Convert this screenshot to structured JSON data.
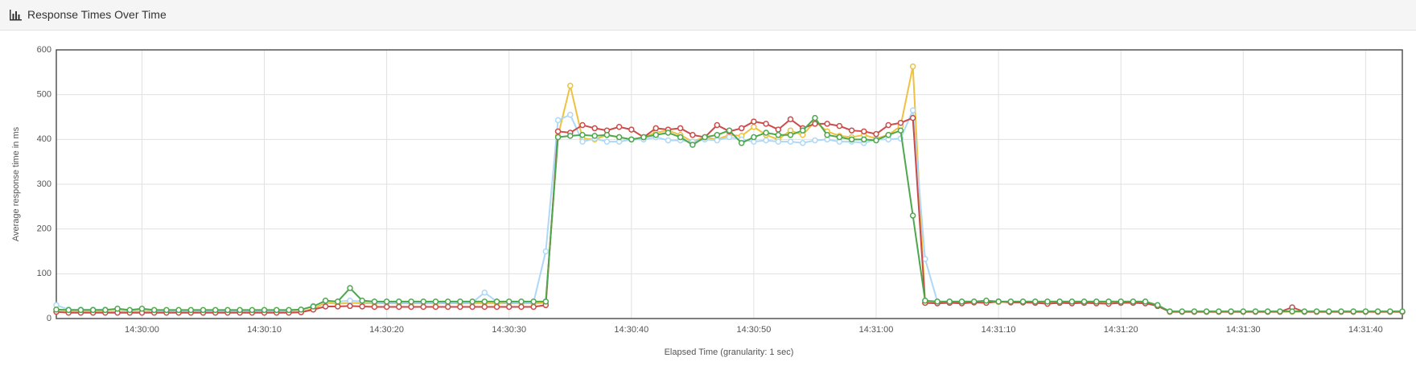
{
  "chart_data": {
    "type": "line",
    "title": "Response Times Over Time",
    "x_label": "Elapsed Time (granularity: 1 sec)",
    "y_label": "Average response time in ms",
    "x": [
      "14:29:53",
      "14:29:54",
      "14:29:55",
      "14:29:56",
      "14:29:57",
      "14:29:58",
      "14:29:59",
      "14:30:00",
      "14:30:01",
      "14:30:02",
      "14:30:03",
      "14:30:04",
      "14:30:05",
      "14:30:06",
      "14:30:07",
      "14:30:08",
      "14:30:09",
      "14:30:10",
      "14:30:11",
      "14:30:12",
      "14:30:13",
      "14:30:14",
      "14:30:15",
      "14:30:16",
      "14:30:17",
      "14:30:18",
      "14:30:19",
      "14:30:20",
      "14:30:21",
      "14:30:22",
      "14:30:23",
      "14:30:24",
      "14:30:25",
      "14:30:26",
      "14:30:27",
      "14:30:28",
      "14:30:29",
      "14:30:30",
      "14:30:31",
      "14:30:32",
      "14:30:33",
      "14:30:34",
      "14:30:35",
      "14:30:36",
      "14:30:37",
      "14:30:38",
      "14:30:39",
      "14:30:40",
      "14:30:41",
      "14:30:42",
      "14:30:43",
      "14:30:44",
      "14:30:45",
      "14:30:46",
      "14:30:47",
      "14:30:48",
      "14:30:49",
      "14:30:50",
      "14:30:51",
      "14:30:52",
      "14:30:53",
      "14:30:54",
      "14:30:55",
      "14:30:56",
      "14:30:57",
      "14:30:58",
      "14:30:59",
      "14:31:00",
      "14:31:01",
      "14:31:02",
      "14:31:03",
      "14:31:04",
      "14:31:05",
      "14:31:06",
      "14:31:07",
      "14:31:08",
      "14:31:09",
      "14:31:10",
      "14:31:11",
      "14:31:12",
      "14:31:13",
      "14:31:14",
      "14:31:15",
      "14:31:16",
      "14:31:17",
      "14:31:18",
      "14:31:19",
      "14:31:20",
      "14:31:21",
      "14:31:22",
      "14:31:23",
      "14:31:24",
      "14:31:25",
      "14:31:26",
      "14:31:27",
      "14:31:28",
      "14:31:29",
      "14:31:30",
      "14:31:31",
      "14:31:32",
      "14:31:33",
      "14:31:34",
      "14:31:35",
      "14:31:36",
      "14:31:37",
      "14:31:38",
      "14:31:39",
      "14:31:40",
      "14:31:41",
      "14:31:42",
      "14:31:43"
    ],
    "xlim": [
      "14:29:53",
      "14:31:43"
    ],
    "xticks": [
      "14:30:00",
      "14:30:10",
      "14:30:20",
      "14:30:30",
      "14:30:40",
      "14:30:50",
      "14:31:00",
      "14:31:10",
      "14:31:20",
      "14:31:30",
      "14:31:40"
    ],
    "ylim": [
      0,
      600
    ],
    "yticks": [
      0,
      100,
      200,
      300,
      400,
      500,
      600
    ],
    "grid": true,
    "series": [
      {
        "color": "#edc240",
        "values": [
          15,
          15,
          15,
          15,
          15,
          15,
          15,
          15,
          15,
          15,
          15,
          15,
          15,
          15,
          15,
          15,
          15,
          15,
          15,
          15,
          15,
          22,
          35,
          33,
          35,
          34,
          34,
          34,
          34,
          34,
          34,
          34,
          34,
          34,
          34,
          34,
          34,
          34,
          34,
          34,
          35,
          408,
          520,
          402,
          400,
          410,
          405,
          400,
          405,
          415,
          420,
          410,
          395,
          405,
          400,
          410,
          408,
          428,
          410,
          400,
          420,
          410,
          440,
          418,
          408,
          405,
          410,
          402,
          410,
          430,
          563,
          35,
          37,
          37,
          37,
          37,
          37,
          37,
          37,
          37,
          37,
          37,
          37,
          37,
          37,
          37,
          37,
          37,
          37,
          37,
          28,
          15,
          15,
          15,
          15,
          15,
          15,
          15,
          15,
          15,
          15,
          15,
          15,
          15,
          15,
          15,
          15,
          15,
          15,
          15,
          15
        ]
      },
      {
        "color": "#afd8f8",
        "values": [
          30,
          20,
          20,
          20,
          20,
          20,
          18,
          20,
          18,
          18,
          18,
          18,
          18,
          18,
          18,
          18,
          18,
          18,
          18,
          18,
          20,
          28,
          38,
          38,
          40,
          38,
          36,
          36,
          36,
          36,
          36,
          36,
          36,
          36,
          36,
          58,
          38,
          36,
          36,
          36,
          150,
          443,
          455,
          395,
          402,
          395,
          395,
          400,
          400,
          405,
          398,
          398,
          395,
          400,
          398,
          405,
          400,
          395,
          398,
          395,
          395,
          392,
          398,
          400,
          395,
          395,
          392,
          400,
          400,
          402,
          465,
          133,
          38,
          38,
          38,
          38,
          38,
          38,
          38,
          38,
          38,
          38,
          38,
          38,
          38,
          38,
          38,
          38,
          38,
          38,
          28,
          16,
          16,
          16,
          16,
          16,
          16,
          16,
          16,
          16,
          16,
          16,
          16,
          16,
          16,
          16,
          16,
          16,
          16,
          16,
          16
        ]
      },
      {
        "color": "#cb4b4b",
        "values": [
          15,
          13,
          13,
          13,
          13,
          13,
          13,
          13,
          13,
          13,
          13,
          13,
          13,
          13,
          13,
          13,
          13,
          13,
          13,
          13,
          14,
          20,
          27,
          27,
          28,
          27,
          26,
          26,
          26,
          26,
          26,
          26,
          26,
          26,
          26,
          26,
          26,
          26,
          26,
          26,
          30,
          418,
          415,
          432,
          425,
          420,
          428,
          422,
          405,
          425,
          422,
          425,
          410,
          405,
          432,
          418,
          425,
          440,
          435,
          422,
          445,
          425,
          435,
          435,
          430,
          420,
          418,
          412,
          432,
          437,
          448,
          35,
          34,
          35,
          34,
          36,
          35,
          38,
          36,
          36,
          35,
          33,
          35,
          34,
          35,
          34,
          33,
          35,
          35,
          34,
          28,
          15,
          15,
          15,
          15,
          15,
          15,
          15,
          15,
          15,
          15,
          25,
          15,
          15,
          15,
          15,
          15,
          15,
          15,
          15,
          15
        ]
      },
      {
        "color": "#4da74d",
        "values": [
          20,
          19,
          19,
          19,
          19,
          22,
          19,
          22,
          19,
          19,
          19,
          19,
          19,
          19,
          19,
          19,
          19,
          19,
          19,
          19,
          20,
          27,
          40,
          38,
          68,
          40,
          38,
          38,
          38,
          38,
          38,
          38,
          38,
          38,
          38,
          38,
          38,
          38,
          38,
          38,
          38,
          405,
          408,
          410,
          408,
          410,
          405,
          400,
          405,
          410,
          415,
          405,
          388,
          405,
          410,
          420,
          392,
          405,
          415,
          410,
          410,
          420,
          448,
          410,
          405,
          400,
          400,
          398,
          410,
          420,
          230,
          40,
          38,
          38,
          38,
          38,
          40,
          38,
          38,
          38,
          38,
          38,
          38,
          38,
          38,
          38,
          38,
          38,
          38,
          38,
          30,
          16,
          16,
          16,
          16,
          16,
          16,
          16,
          16,
          16,
          16,
          16,
          16,
          16,
          16,
          16,
          16,
          16,
          16,
          16,
          16
        ]
      }
    ]
  }
}
